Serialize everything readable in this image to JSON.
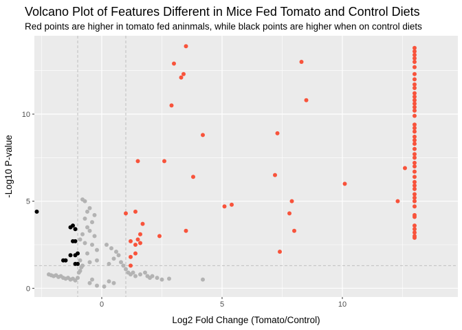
{
  "chart_data": {
    "type": "scatter",
    "title": "Volcano Plot of Features Different in Mice Fed Tomato and Control Diets",
    "subtitle": "Red points are higher in tomato fed aninmals, while black points are higher when on control diets",
    "xlabel": "Log2 Fold Change (Tomato/Control)",
    "ylabel": "-Log10 P-value",
    "xlim": [
      -2.8,
      14.8
    ],
    "ylim": [
      -0.5,
      14.5
    ],
    "x_ticks": [
      0,
      5,
      10
    ],
    "y_ticks": [
      0,
      5,
      10
    ],
    "grid": true,
    "reference_lines": {
      "vertical": [
        -1,
        1
      ],
      "horizontal": [
        1.3
      ]
    },
    "colors": {
      "up": "#F8533B",
      "down": "#000000",
      "not_significant": "#B3B3B3",
      "panel": "#EBEBEB",
      "grid": "#FFFFFF",
      "reference": "#BEBEBE"
    },
    "series": [
      {
        "group": "up",
        "points": [
          [
            3.5,
            13.9
          ],
          [
            3.0,
            12.9
          ],
          [
            3.4,
            12.3
          ],
          [
            3.3,
            12.1
          ],
          [
            8.3,
            13.0
          ],
          [
            8.5,
            10.8
          ],
          [
            2.9,
            10.5
          ],
          [
            4.2,
            8.8
          ],
          [
            7.3,
            8.9
          ],
          [
            1.5,
            7.3
          ],
          [
            2.6,
            7.3
          ],
          [
            3.8,
            6.4
          ],
          [
            7.2,
            6.5
          ],
          [
            10.1,
            6.0
          ],
          [
            12.6,
            6.9
          ],
          [
            12.3,
            5.0
          ],
          [
            5.4,
            4.8
          ],
          [
            5.1,
            4.7
          ],
          [
            7.9,
            5.0
          ],
          [
            7.8,
            4.3
          ],
          [
            1.0,
            4.3
          ],
          [
            1.4,
            4.4
          ],
          [
            1.7,
            3.7
          ],
          [
            3.5,
            3.3
          ],
          [
            8.0,
            3.3
          ],
          [
            2.4,
            3.0
          ],
          [
            1.6,
            3.1
          ],
          [
            1.5,
            2.8
          ],
          [
            1.2,
            2.7
          ],
          [
            1.6,
            2.6
          ],
          [
            1.4,
            2.5
          ],
          [
            1.4,
            2.0
          ],
          [
            1.2,
            1.8
          ],
          [
            7.4,
            2.1
          ],
          [
            1.2,
            1.3
          ],
          [
            13.0,
            13.8
          ],
          [
            13.0,
            13.6
          ],
          [
            13.0,
            13.4
          ],
          [
            13.0,
            13.2
          ],
          [
            13.0,
            13.0
          ],
          [
            13.0,
            12.7
          ],
          [
            13.0,
            12.3
          ],
          [
            13.0,
            12.0
          ],
          [
            13.0,
            11.7
          ],
          [
            13.0,
            11.5
          ],
          [
            13.0,
            11.2
          ],
          [
            13.0,
            11.0
          ],
          [
            13.0,
            10.8
          ],
          [
            13.0,
            10.6
          ],
          [
            13.0,
            10.4
          ],
          [
            13.0,
            10.2
          ],
          [
            13.0,
            9.9
          ],
          [
            13.0,
            9.4
          ],
          [
            13.0,
            9.2
          ],
          [
            13.0,
            9.0
          ],
          [
            13.0,
            8.7
          ],
          [
            13.0,
            8.5
          ],
          [
            13.0,
            8.3
          ],
          [
            13.0,
            8.0
          ],
          [
            13.0,
            7.7
          ],
          [
            13.0,
            7.5
          ],
          [
            13.0,
            7.2
          ],
          [
            13.0,
            7.0
          ],
          [
            13.0,
            6.7
          ],
          [
            13.0,
            6.4
          ],
          [
            13.0,
            6.1
          ],
          [
            13.0,
            5.9
          ],
          [
            13.0,
            5.7
          ],
          [
            13.0,
            5.4
          ],
          [
            13.0,
            5.2
          ],
          [
            13.0,
            5.0
          ],
          [
            13.0,
            4.7
          ],
          [
            13.0,
            4.2
          ],
          [
            13.0,
            4.1
          ],
          [
            13.0,
            3.6
          ],
          [
            13.0,
            3.4
          ],
          [
            13.0,
            3.2
          ],
          [
            13.0,
            3.0
          ],
          [
            13.0,
            2.9
          ]
        ]
      },
      {
        "group": "down",
        "points": [
          [
            -2.7,
            4.4
          ],
          [
            -1.2,
            3.6
          ],
          [
            -1.1,
            3.4
          ],
          [
            -1.3,
            3.5
          ],
          [
            -1.2,
            2.7
          ],
          [
            -1.1,
            2.7
          ],
          [
            -1.0,
            2.0
          ],
          [
            -1.1,
            1.9
          ],
          [
            -1.3,
            1.9
          ],
          [
            -1.5,
            1.6
          ],
          [
            -1.6,
            1.6
          ],
          [
            -1.0,
            1.4
          ],
          [
            -1.1,
            1.4
          ]
        ]
      },
      {
        "group": "not_significant",
        "points": [
          [
            -0.8,
            5.1
          ],
          [
            -0.7,
            5.0
          ],
          [
            -0.5,
            4.6
          ],
          [
            -0.6,
            4.4
          ],
          [
            -0.3,
            4.2
          ],
          [
            -0.7,
            4.0
          ],
          [
            -0.4,
            3.8
          ],
          [
            -0.6,
            3.5
          ],
          [
            -0.5,
            3.3
          ],
          [
            -0.8,
            3.1
          ],
          [
            -0.3,
            3.0
          ],
          [
            -0.9,
            2.8
          ],
          [
            -0.7,
            2.6
          ],
          [
            -0.4,
            2.5
          ],
          [
            0.2,
            2.5
          ],
          [
            0.4,
            2.3
          ],
          [
            -0.2,
            2.2
          ],
          [
            0.6,
            2.1
          ],
          [
            0.7,
            1.9
          ],
          [
            0.5,
            1.7
          ],
          [
            0.8,
            1.5
          ],
          [
            0.9,
            1.3
          ],
          [
            0.3,
            1.4
          ],
          [
            -0.6,
            2.0
          ],
          [
            -0.9,
            1.6
          ],
          [
            -0.8,
            1.3
          ],
          [
            -0.2,
            1.6
          ],
          [
            -0.5,
            1.5
          ],
          [
            -2.2,
            0.8
          ],
          [
            -2.1,
            0.75
          ],
          [
            -2.0,
            0.7
          ],
          [
            -1.9,
            0.75
          ],
          [
            -1.8,
            0.65
          ],
          [
            -1.7,
            0.7
          ],
          [
            -1.6,
            0.6
          ],
          [
            -1.5,
            0.55
          ],
          [
            -1.4,
            0.6
          ],
          [
            -1.3,
            0.5
          ],
          [
            -1.2,
            0.55
          ],
          [
            -1.1,
            0.45
          ],
          [
            -1.0,
            0.6
          ],
          [
            -0.9,
            1.0
          ],
          [
            -0.85,
            1.2
          ],
          [
            -0.95,
            0.9
          ],
          [
            1.0,
            1.1
          ],
          [
            1.1,
            0.9
          ],
          [
            1.2,
            0.8
          ],
          [
            1.3,
            0.9
          ],
          [
            1.4,
            0.7
          ],
          [
            1.6,
            0.8
          ],
          [
            1.8,
            0.9
          ],
          [
            1.9,
            0.7
          ],
          [
            2.0,
            0.6
          ],
          [
            2.1,
            0.7
          ],
          [
            2.3,
            0.6
          ],
          [
            2.5,
            0.5
          ],
          [
            2.8,
            0.55
          ],
          [
            4.2,
            0.5
          ],
          [
            -0.5,
            0.3
          ],
          [
            0.5,
            0.3
          ],
          [
            -0.2,
            0.15
          ],
          [
            0.1,
            0.1
          ],
          [
            0.3,
            0.4
          ],
          [
            -0.4,
            0.5
          ]
        ]
      }
    ]
  }
}
